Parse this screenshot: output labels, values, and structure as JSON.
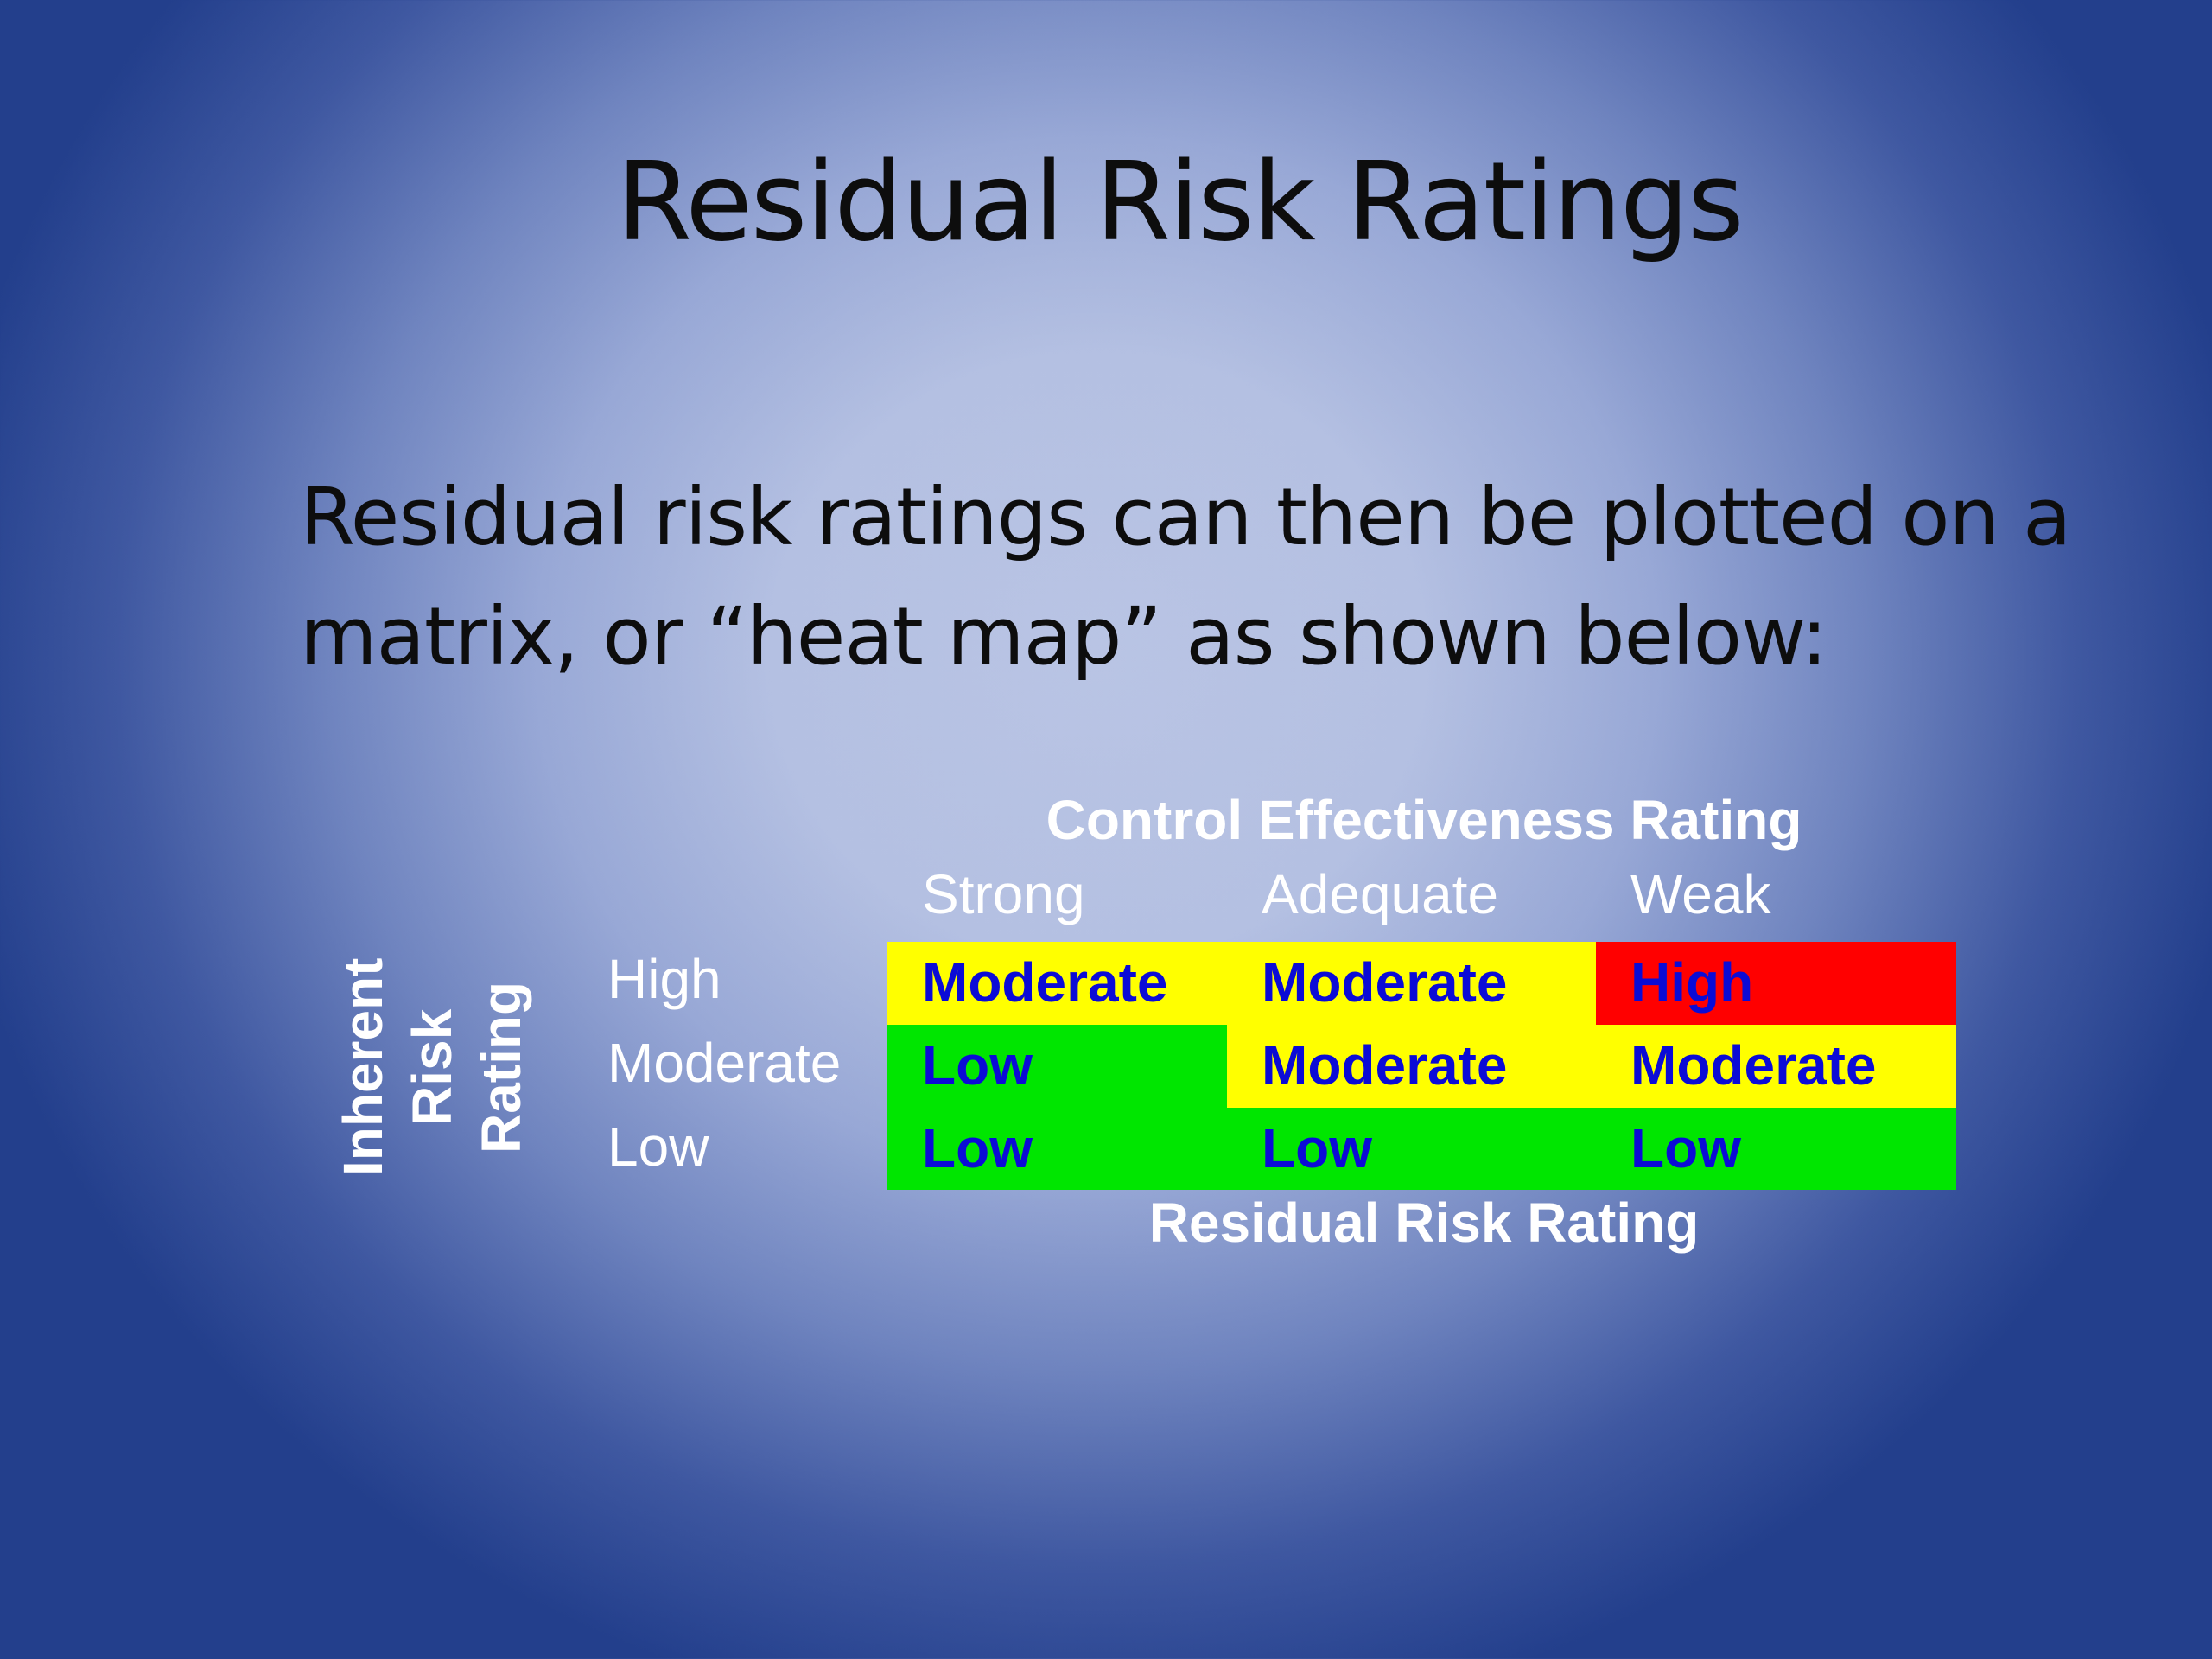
{
  "slide": {
    "title": "Residual Risk Ratings",
    "body_lines": [
      "Residual risk ratings can then be plotted on a",
      "matrix, or “heat map” as shown below:"
    ]
  },
  "matrix": {
    "column_title": "Control Effectiveness Rating",
    "columns": [
      "Strong",
      "Adequate",
      "Weak"
    ],
    "row_title_words": [
      "Inherent",
      "Risk",
      "Rating"
    ],
    "rows": [
      "High",
      "Moderate",
      "Low"
    ],
    "cells": [
      [
        {
          "label": "Moderate",
          "color": "#ffff00"
        },
        {
          "label": "Moderate",
          "color": "#ffff00"
        },
        {
          "label": "High",
          "color": "#ff0000"
        }
      ],
      [
        {
          "label": "Low",
          "color": "#00e600"
        },
        {
          "label": "Moderate",
          "color": "#ffff00"
        },
        {
          "label": "Moderate",
          "color": "#ffff00"
        }
      ],
      [
        {
          "label": "Low",
          "color": "#00e600"
        },
        {
          "label": "Low",
          "color": "#00e600"
        },
        {
          "label": "Low",
          "color": "#00e600"
        }
      ]
    ],
    "footer": "Residual Risk Rating",
    "colors": {
      "moderate": "#ffff00",
      "low": "#00e600",
      "high": "#ff0000",
      "cell_text": "#0b0bd6",
      "label_text": "#ffffff"
    }
  }
}
